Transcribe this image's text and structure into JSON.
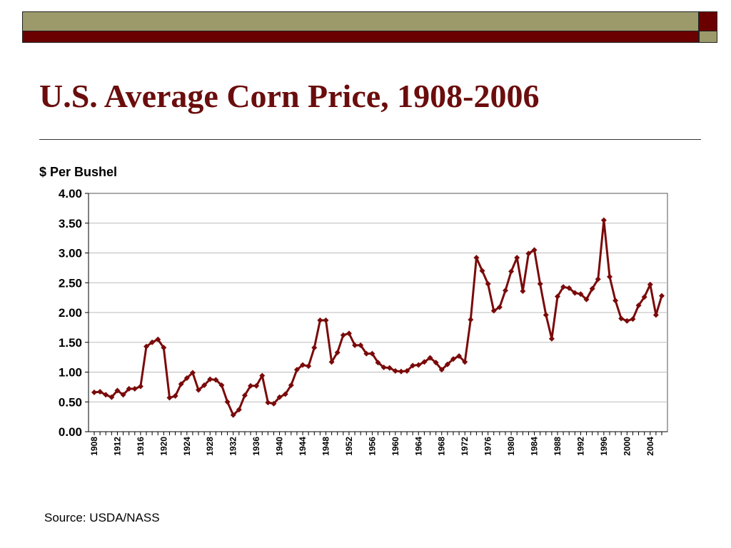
{
  "slide": {
    "title": "U.S. Average Corn Price, 1908-2006",
    "source": "Source: USDA/NASS",
    "colors": {
      "olive": "#9c9a6b",
      "maroon": "#6b0000",
      "line": "#7a0a0a",
      "title": "#6b0d0d"
    }
  },
  "chart_data": {
    "type": "line",
    "title": "U.S. Average Corn Price, 1908-2006",
    "ylabel": "$ Per Bushel",
    "xlabel": "",
    "ylim": [
      0,
      4
    ],
    "yticks": [
      "0.00",
      "0.50",
      "1.00",
      "1.50",
      "2.00",
      "2.50",
      "3.00",
      "3.50",
      "4.00"
    ],
    "xlim": [
      1908,
      2006
    ],
    "xticks": [
      "1908",
      "1912",
      "1916",
      "1920",
      "1924",
      "1928",
      "1932",
      "1936",
      "1940",
      "1944",
      "1948",
      "1952",
      "1956",
      "1960",
      "1964",
      "1968",
      "1972",
      "1976",
      "1980",
      "1984",
      "1988",
      "1992",
      "1996",
      "2000",
      "2004"
    ],
    "grid": true,
    "legend": "none",
    "series": [
      {
        "x": [
          1908,
          1909,
          1910,
          1911,
          1912,
          1913,
          1914,
          1915,
          1916,
          1917,
          1918,
          1919,
          1920,
          1921,
          1922,
          1923,
          1924,
          1925,
          1926,
          1927,
          1928,
          1929,
          1930,
          1931,
          1932,
          1933,
          1934,
          1935,
          1936,
          1937,
          1938,
          1939,
          1940,
          1941,
          1942,
          1943,
          1944,
          1945,
          1946,
          1947,
          1948,
          1949,
          1950,
          1951,
          1952,
          1953,
          1954,
          1955,
          1956,
          1957,
          1958,
          1959,
          1960,
          1961,
          1962,
          1963,
          1964,
          1965,
          1966,
          1967,
          1968,
          1969,
          1970,
          1971,
          1972,
          1973,
          1974,
          1975,
          1976,
          1977,
          1978,
          1979,
          1980,
          1981,
          1982,
          1983,
          1984,
          1985,
          1986,
          1987,
          1988,
          1989,
          1990,
          1991,
          1992,
          1993,
          1994,
          1995,
          1996,
          1997,
          1998,
          1999,
          2000,
          2001,
          2002,
          2003,
          2004,
          2005,
          2006
        ],
        "values": [
          0.66,
          0.67,
          0.62,
          0.58,
          0.69,
          0.62,
          0.72,
          0.72,
          0.76,
          1.43,
          1.5,
          1.55,
          1.41,
          0.57,
          0.6,
          0.8,
          0.9,
          0.99,
          0.7,
          0.78,
          0.88,
          0.87,
          0.78,
          0.5,
          0.28,
          0.37,
          0.61,
          0.77,
          0.77,
          0.94,
          0.49,
          0.47,
          0.58,
          0.63,
          0.78,
          1.04,
          1.12,
          1.1,
          1.41,
          1.87,
          1.87,
          1.17,
          1.33,
          1.62,
          1.65,
          1.45,
          1.45,
          1.31,
          1.31,
          1.16,
          1.08,
          1.07,
          1.02,
          1.01,
          1.02,
          1.11,
          1.12,
          1.17,
          1.24,
          1.16,
          1.04,
          1.13,
          1.22,
          1.27,
          1.17,
          1.88,
          2.92,
          2.7,
          2.48,
          2.03,
          2.09,
          2.37,
          2.69,
          2.92,
          2.36,
          2.99,
          3.05,
          2.48,
          1.96,
          1.56,
          2.27,
          2.43,
          2.41,
          2.33,
          2.31,
          2.22,
          2.4,
          2.56,
          3.55,
          2.6,
          2.2,
          1.9,
          1.86,
          1.89,
          2.12,
          2.26,
          2.47,
          1.96,
          2.28
        ]
      }
    ]
  }
}
